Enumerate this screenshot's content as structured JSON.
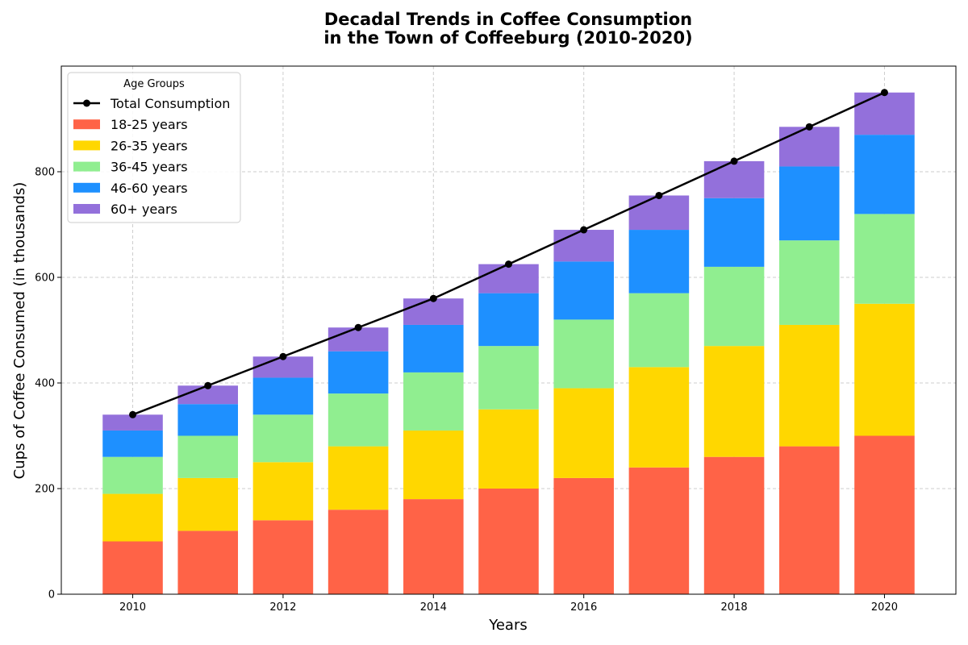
{
  "chart_data": {
    "type": "bar",
    "stacked": true,
    "title_lines": [
      "Decadal Trends in Coffee Consumption",
      "in the Town of Coffeeburg (2010-2020)"
    ],
    "xlabel": "Years",
    "ylabel": "Cups of Coffee Consumed (in thousands)",
    "categories": [
      2010,
      2011,
      2012,
      2013,
      2014,
      2015,
      2016,
      2017,
      2018,
      2019,
      2020
    ],
    "x_tick_labels": [
      "2010",
      "2012",
      "2014",
      "2016",
      "2018",
      "2020"
    ],
    "y_tick_labels": [
      "0",
      "200",
      "400",
      "600",
      "800"
    ],
    "xlim": [
      2009.05,
      2020.95
    ],
    "ylim": [
      0,
      1000
    ],
    "grid": true,
    "legend": {
      "title": "Age Groups",
      "position": "upper-left"
    },
    "series": [
      {
        "name": "18-25 years",
        "color": "#FF6347",
        "values": [
          100,
          120,
          140,
          160,
          180,
          200,
          220,
          240,
          260,
          280,
          300
        ]
      },
      {
        "name": "26-35 years",
        "color": "#FFD700",
        "values": [
          90,
          100,
          110,
          120,
          130,
          150,
          170,
          190,
          210,
          230,
          250
        ]
      },
      {
        "name": "36-45 years",
        "color": "#90EE90",
        "values": [
          70,
          80,
          90,
          100,
          110,
          120,
          130,
          140,
          150,
          160,
          170
        ]
      },
      {
        "name": "46-60 years",
        "color": "#1E90FF",
        "values": [
          50,
          60,
          70,
          80,
          90,
          100,
          110,
          120,
          130,
          140,
          150
        ]
      },
      {
        "name": "60+ years",
        "color": "#9370DB",
        "values": [
          30,
          35,
          40,
          45,
          50,
          55,
          60,
          65,
          70,
          75,
          80
        ]
      }
    ],
    "line_series": {
      "name": "Total Consumption",
      "color": "#000000",
      "values": [
        340,
        395,
        450,
        505,
        560,
        625,
        690,
        755,
        820,
        885,
        950
      ]
    }
  }
}
